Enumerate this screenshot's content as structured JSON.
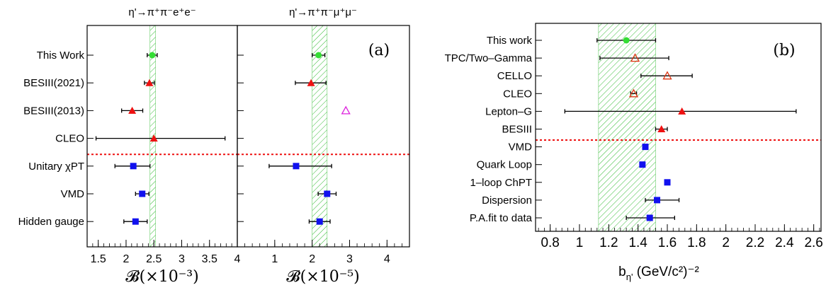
{
  "chart_data": [
    {
      "type": "scatter",
      "panel_label": "",
      "title": "η'→π⁺π⁻e⁺e⁻",
      "xlabel": "𝓑(×10⁻³)",
      "xlim": [
        1.3,
        4.0
      ],
      "xticks": [
        "1.5",
        "2",
        "2.5",
        "3",
        "3.5",
        "4"
      ],
      "categories": [
        "This Work",
        "BESIII(2021)",
        "BESIII(2013)",
        "CLEO",
        "Unitary χPT",
        "VMD",
        "Hidden gauge"
      ],
      "band": [
        2.43,
        2.53
      ],
      "separator_after": 3,
      "points": [
        {
          "y": 0,
          "x": 2.47,
          "xerr": [
            0.09,
            0.09
          ],
          "marker": "circle",
          "color": "#33dd33"
        },
        {
          "y": 1,
          "x": 2.42,
          "xerr": [
            0.09,
            0.09
          ],
          "marker": "triangle",
          "color": "#ee1111"
        },
        {
          "y": 2,
          "x": 2.11,
          "xerr": [
            0.19,
            0.19
          ],
          "marker": "triangle",
          "color": "#ee1111"
        },
        {
          "y": 3,
          "x": 2.5,
          "xerr": [
            1.04,
            1.28
          ],
          "marker": "triangle",
          "color": "#ee1111"
        },
        {
          "y": 4,
          "x": 2.13,
          "xerr": [
            0.33,
            0.3
          ],
          "marker": "square",
          "color": "#1111ee"
        },
        {
          "y": 5,
          "x": 2.29,
          "xerr": [
            0.12,
            0.12
          ],
          "marker": "square",
          "color": "#1111ee"
        },
        {
          "y": 6,
          "x": 2.17,
          "xerr": [
            0.21,
            0.21
          ],
          "marker": "square",
          "color": "#1111ee"
        }
      ]
    },
    {
      "type": "scatter",
      "panel_label": "(a)",
      "title": "η'→π⁺π⁻μ⁺μ⁻",
      "xlabel": "𝓑(×10⁻⁵)",
      "xlim": [
        0.0,
        4.6
      ],
      "xticks": [
        "1",
        "2",
        "3",
        "4"
      ],
      "categories": [
        "This Work",
        "BESIII(2021)",
        "BESIII(2013)",
        "CLEO",
        "Unitary χPT",
        "VMD",
        "Hidden gauge"
      ],
      "band": [
        2.0,
        2.4
      ],
      "separator_after": 3,
      "points": [
        {
          "y": 0,
          "x": 2.17,
          "xerr": [
            0.17,
            0.17
          ],
          "marker": "circle",
          "color": "#33dd33"
        },
        {
          "y": 1,
          "x": 1.97,
          "xerr": [
            0.42,
            0.4
          ],
          "marker": "triangle",
          "color": "#ee1111"
        },
        {
          "y": 2,
          "x": 2.9,
          "xerr": [
            0,
            0
          ],
          "marker": "triangle-open",
          "color": "#dd22dd"
        },
        {
          "y": 4,
          "x": 1.57,
          "xerr": [
            0.72,
            0.95
          ],
          "marker": "square",
          "color": "#1111ee"
        },
        {
          "y": 5,
          "x": 2.4,
          "xerr": [
            0.24,
            0.24
          ],
          "marker": "square",
          "color": "#1111ee"
        },
        {
          "y": 6,
          "x": 2.2,
          "xerr": [
            0.28,
            0.28
          ],
          "marker": "square",
          "color": "#1111ee"
        }
      ]
    },
    {
      "type": "scatter",
      "panel_label": "(b)",
      "title": "",
      "xlabel": "b",
      "xlabel_sub": "η'",
      "xlabel_unit": "(GeV/c²)⁻²",
      "xlim": [
        0.7,
        2.65
      ],
      "xticks": [
        "0.8",
        "1",
        "1.2",
        "1.4",
        "1.6",
        "1.8",
        "2",
        "2.2",
        "2.4",
        "2.6"
      ],
      "categories": [
        "This work",
        "TPC/Two–Gamma",
        "CELLO",
        "CLEO",
        "Lepton–G",
        "BESIII",
        "VMD",
        "Quark Loop",
        "1–loop ChPT",
        "Dispersion",
        "P.A.fit to data"
      ],
      "band": [
        1.13,
        1.52
      ],
      "separator_after": 5,
      "points": [
        {
          "y": 0,
          "x": 1.32,
          "xerr": [
            0.2,
            0.2
          ],
          "marker": "circle",
          "color": "#33dd33"
        },
        {
          "y": 1,
          "x": 1.38,
          "xerr": [
            0.24,
            0.23
          ],
          "marker": "triangle-open",
          "color": "#dd3311"
        },
        {
          "y": 2,
          "x": 1.6,
          "xerr": [
            0.18,
            0.17
          ],
          "marker": "triangle-open",
          "color": "#dd3311"
        },
        {
          "y": 3,
          "x": 1.37,
          "xerr": [
            0.02,
            0.02
          ],
          "marker": "triangle-open",
          "color": "#dd3311"
        },
        {
          "y": 4,
          "x": 1.7,
          "xerr": [
            0.8,
            0.78
          ],
          "marker": "triangle",
          "color": "#ee1111"
        },
        {
          "y": 5,
          "x": 1.56,
          "xerr": [
            0.04,
            0.04
          ],
          "marker": "triangle",
          "color": "#ee1111"
        },
        {
          "y": 6,
          "x": 1.45,
          "xerr": [
            0,
            0
          ],
          "marker": "square",
          "color": "#1111ee"
        },
        {
          "y": 7,
          "x": 1.43,
          "xerr": [
            0,
            0
          ],
          "marker": "square",
          "color": "#1111ee"
        },
        {
          "y": 8,
          "x": 1.6,
          "xerr": [
            0,
            0
          ],
          "marker": "square",
          "color": "#1111ee"
        },
        {
          "y": 9,
          "x": 1.53,
          "xerr": [
            0.08,
            0.15
          ],
          "marker": "square",
          "color": "#1111ee"
        },
        {
          "y": 10,
          "x": 1.48,
          "xerr": [
            0.16,
            0.17
          ],
          "marker": "square",
          "color": "#1111ee"
        }
      ]
    }
  ]
}
